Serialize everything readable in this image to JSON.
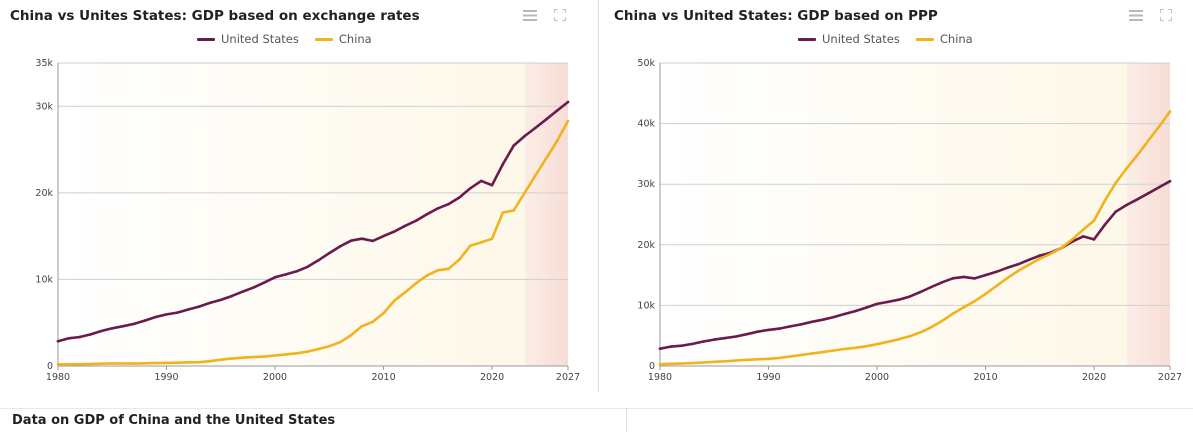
{
  "colors": {
    "us": "#6b1a4e",
    "china": "#f2b21b",
    "grid": "#cfcfcf"
  },
  "icons": {
    "menu": "hamburger-menu-icon",
    "fullscreen": "fullscreen-icon"
  },
  "bottom": {
    "title": "Data on GDP of China and the United States"
  },
  "chart_data": [
    {
      "type": "line",
      "title": "China vs Unites States: GDP based on exchange rates",
      "xlabel": "",
      "ylabel": "",
      "xlim": [
        1980,
        2027
      ],
      "ylim": [
        0,
        35000
      ],
      "xticks": [
        1980,
        1990,
        2000,
        2010,
        2020,
        2027
      ],
      "yticks": [
        0,
        10000,
        20000,
        30000,
        35000
      ],
      "ytick_labels": [
        "0",
        "10k",
        "20k",
        "30k",
        "35k"
      ],
      "grid": true,
      "legend_position": "top-center",
      "forecast_from": 2023,
      "x": [
        1980,
        1981,
        1982,
        1983,
        1984,
        1985,
        1986,
        1987,
        1988,
        1989,
        1990,
        1991,
        1992,
        1993,
        1994,
        1995,
        1996,
        1997,
        1998,
        1999,
        2000,
        2001,
        2002,
        2003,
        2004,
        2005,
        2006,
        2007,
        2008,
        2009,
        2010,
        2011,
        2012,
        2013,
        2014,
        2015,
        2016,
        2017,
        2018,
        2019,
        2020,
        2021,
        2022,
        2023,
        2024,
        2025,
        2026,
        2027
      ],
      "series": [
        {
          "name": "United States",
          "color": "#6b1a4e",
          "values": [
            2860,
            3200,
            3350,
            3650,
            4040,
            4350,
            4600,
            4860,
            5250,
            5660,
            5960,
            6170,
            6530,
            6860,
            7290,
            7640,
            8070,
            8580,
            9060,
            9630,
            10250,
            10580,
            10940,
            11460,
            12210,
            13040,
            13810,
            14470,
            14710,
            14450,
            15000,
            15540,
            16200,
            16780,
            17520,
            18210,
            18700,
            19480,
            20530,
            21380,
            20890,
            23320,
            25460,
            26560,
            27500,
            28500,
            29500,
            30500
          ]
        },
        {
          "name": "China",
          "color": "#f2b21b",
          "values": [
            190,
            200,
            210,
            230,
            260,
            300,
            300,
            280,
            310,
            350,
            360,
            380,
            430,
            440,
            560,
            730,
            860,
            960,
            1030,
            1090,
            1210,
            1340,
            1470,
            1660,
            1960,
            2290,
            2750,
            3550,
            4590,
            5100,
            6090,
            7550,
            8530,
            9570,
            10440,
            11060,
            11230,
            12310,
            13890,
            14280,
            14690,
            17730,
            17960,
            20000,
            22000,
            24000,
            26000,
            28300
          ]
        }
      ]
    },
    {
      "type": "line",
      "title": "China vs United States: GDP based on PPP",
      "xlabel": "",
      "ylabel": "",
      "xlim": [
        1980,
        2027
      ],
      "ylim": [
        0,
        50000
      ],
      "xticks": [
        1980,
        1990,
        2000,
        2010,
        2020,
        2027
      ],
      "yticks": [
        0,
        10000,
        20000,
        30000,
        40000,
        50000
      ],
      "ytick_labels": [
        "0",
        "10k",
        "20k",
        "30k",
        "40k",
        "50k"
      ],
      "grid": true,
      "legend_position": "top-center",
      "forecast_from": 2023,
      "x": [
        1980,
        1981,
        1982,
        1983,
        1984,
        1985,
        1986,
        1987,
        1988,
        1989,
        1990,
        1991,
        1992,
        1993,
        1994,
        1995,
        1996,
        1997,
        1998,
        1999,
        2000,
        2001,
        2002,
        2003,
        2004,
        2005,
        2006,
        2007,
        2008,
        2009,
        2010,
        2011,
        2012,
        2013,
        2014,
        2015,
        2016,
        2017,
        2018,
        2019,
        2020,
        2021,
        2022,
        2023,
        2024,
        2025,
        2026,
        2027
      ],
      "series": [
        {
          "name": "United States",
          "color": "#6b1a4e",
          "values": [
            2860,
            3200,
            3350,
            3650,
            4040,
            4350,
            4600,
            4860,
            5250,
            5660,
            5960,
            6170,
            6530,
            6860,
            7290,
            7640,
            8070,
            8580,
            9060,
            9630,
            10250,
            10580,
            10940,
            11460,
            12210,
            13040,
            13810,
            14470,
            14710,
            14450,
            15000,
            15540,
            16200,
            16780,
            17520,
            18210,
            18700,
            19480,
            20530,
            21380,
            20890,
            23320,
            25460,
            26560,
            27500,
            28500,
            29500,
            30500
          ]
        },
        {
          "name": "China",
          "color": "#f2b21b",
          "values": [
            300,
            360,
            410,
            480,
            580,
            690,
            780,
            900,
            1030,
            1110,
            1190,
            1340,
            1560,
            1800,
            2060,
            2300,
            2550,
            2800,
            3000,
            3250,
            3600,
            4000,
            4400,
            4900,
            5550,
            6400,
            7450,
            8650,
            9700,
            10700,
            11900,
            13200,
            14500,
            15700,
            16700,
            17700,
            18500,
            19500,
            20900,
            22500,
            24000,
            27300,
            30200,
            32600,
            34800,
            37200,
            39500,
            42000
          ]
        }
      ]
    }
  ]
}
